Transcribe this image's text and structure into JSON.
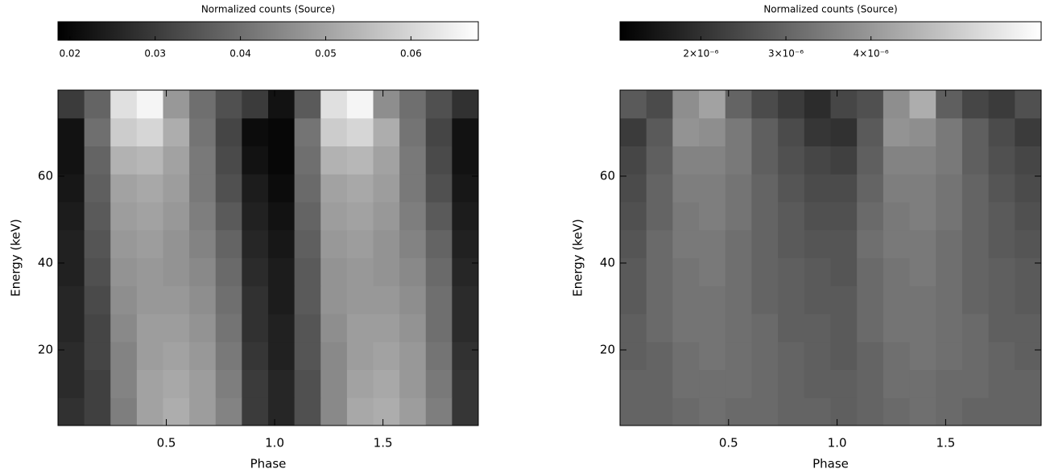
{
  "chart_data": [
    {
      "type": "heatmap",
      "colormap": "gray",
      "colorbar_label": "Normalized counts (Source)",
      "xlabel": "Phase",
      "ylabel": "Energy (keV)",
      "xlim": [
        0,
        1.94
      ],
      "ylim": [
        2.6,
        79.8
      ],
      "zlim": [
        0.0186,
        0.0679
      ],
      "xticks": [
        0.5,
        {
          "value": 1,
          "label": "1.0"
        },
        1.5
      ],
      "yticks": [
        20,
        40,
        60
      ],
      "zticks": [
        0.02,
        0.03,
        0.04,
        0.05,
        0.06
      ],
      "z": [
        [
          0.028,
          0.031,
          0.043,
          0.05,
          0.052,
          0.049,
          0.044,
          0.03,
          0.026,
          0.034,
          0.045,
          0.051,
          0.052,
          0.049,
          0.043,
          0.029
        ],
        [
          0.027,
          0.031,
          0.044,
          0.05,
          0.051,
          0.049,
          0.043,
          0.03,
          0.026,
          0.034,
          0.045,
          0.05,
          0.051,
          0.048,
          0.042,
          0.029
        ],
        [
          0.027,
          0.032,
          0.044,
          0.049,
          0.05,
          0.048,
          0.042,
          0.029,
          0.025,
          0.035,
          0.045,
          0.049,
          0.05,
          0.048,
          0.041,
          0.028
        ],
        [
          0.026,
          0.032,
          0.045,
          0.049,
          0.049,
          0.047,
          0.041,
          0.028,
          0.025,
          0.035,
          0.046,
          0.049,
          0.049,
          0.047,
          0.04,
          0.027
        ],
        [
          0.026,
          0.033,
          0.046,
          0.048,
          0.048,
          0.046,
          0.04,
          0.028,
          0.024,
          0.036,
          0.047,
          0.048,
          0.048,
          0.046,
          0.04,
          0.027
        ],
        [
          0.025,
          0.034,
          0.047,
          0.048,
          0.047,
          0.045,
          0.039,
          0.027,
          0.024,
          0.036,
          0.047,
          0.048,
          0.047,
          0.045,
          0.039,
          0.026
        ],
        [
          0.025,
          0.035,
          0.048,
          0.049,
          0.047,
          0.044,
          0.038,
          0.026,
          0.023,
          0.037,
          0.048,
          0.049,
          0.047,
          0.044,
          0.038,
          0.025
        ],
        [
          0.024,
          0.036,
          0.049,
          0.05,
          0.048,
          0.043,
          0.036,
          0.025,
          0.022,
          0.038,
          0.049,
          0.05,
          0.048,
          0.043,
          0.036,
          0.024
        ],
        [
          0.023,
          0.037,
          0.05,
          0.051,
          0.049,
          0.042,
          0.034,
          0.024,
          0.021,
          0.039,
          0.05,
          0.051,
          0.049,
          0.042,
          0.034,
          0.023
        ],
        [
          0.022,
          0.038,
          0.053,
          0.054,
          0.05,
          0.042,
          0.033,
          0.022,
          0.02,
          0.04,
          0.053,
          0.054,
          0.05,
          0.042,
          0.033,
          0.022
        ],
        [
          0.022,
          0.04,
          0.058,
          0.06,
          0.052,
          0.041,
          0.032,
          0.021,
          0.02,
          0.041,
          0.058,
          0.06,
          0.052,
          0.041,
          0.032,
          0.022
        ],
        [
          0.03,
          0.038,
          0.062,
          0.066,
          0.048,
          0.04,
          0.034,
          0.03,
          0.022,
          0.036,
          0.062,
          0.066,
          0.046,
          0.04,
          0.034,
          0.028
        ]
      ]
    },
    {
      "type": "heatmap",
      "colormap": "gray",
      "colorbar_label": "Normalized counts (Source)",
      "xlabel": "Phase",
      "ylabel": "Energy (keV)",
      "xlim": [
        0,
        1.94
      ],
      "ylim": [
        2.6,
        79.8
      ],
      "zlim": [
        1.05e-06,
        6e-06
      ],
      "xticks": [
        0.5,
        {
          "value": 1,
          "label": "1.0"
        },
        1.5
      ],
      "yticks": [
        20,
        40,
        60
      ],
      "zticks": [
        {
          "value": 2e-06,
          "label": "2×10⁻⁶"
        },
        {
          "value": 3e-06,
          "label": "3×10⁻⁶"
        },
        {
          "value": 4e-06,
          "label": "4×10⁻⁶"
        }
      ],
      "z": [
        [
          3e-06,
          3e-06,
          3.1e-06,
          3.2e-06,
          3.1e-06,
          3.1e-06,
          3e-06,
          3e-06,
          2.9e-06,
          3e-06,
          3.1e-06,
          3.2e-06,
          3.1e-06,
          3e-06,
          3e-06,
          3e-06
        ],
        [
          3e-06,
          3e-06,
          3.2e-06,
          3.2e-06,
          3.2e-06,
          3.1e-06,
          3e-06,
          2.9e-06,
          2.9e-06,
          3e-06,
          3.2e-06,
          3.2e-06,
          3.1e-06,
          3.1e-06,
          3e-06,
          3e-06
        ],
        [
          2.9e-06,
          3e-06,
          3.2e-06,
          3.3e-06,
          3.2e-06,
          3.1e-06,
          3e-06,
          2.9e-06,
          2.8e-06,
          3e-06,
          3.2e-06,
          3.3e-06,
          3.2e-06,
          3.1e-06,
          3e-06,
          2.9e-06
        ],
        [
          2.9e-06,
          3.1e-06,
          3.3e-06,
          3.3e-06,
          3.2e-06,
          3.1e-06,
          2.9e-06,
          2.9e-06,
          2.8e-06,
          3.1e-06,
          3.3e-06,
          3.3e-06,
          3.2e-06,
          3.1e-06,
          2.9e-06,
          2.9e-06
        ],
        [
          2.8e-06,
          3.1e-06,
          3.3e-06,
          3.3e-06,
          3.2e-06,
          3e-06,
          2.9e-06,
          2.8e-06,
          2.8e-06,
          3.1e-06,
          3.3e-06,
          3.3e-06,
          3.2e-06,
          3e-06,
          2.9e-06,
          2.8e-06
        ],
        [
          2.8e-06,
          3.1e-06,
          3.3e-06,
          3.4e-06,
          3.2e-06,
          3e-06,
          2.9e-06,
          2.8e-06,
          2.7e-06,
          3.1e-06,
          3.3e-06,
          3.4e-06,
          3.2e-06,
          3e-06,
          2.9e-06,
          2.8e-06
        ],
        [
          2.7e-06,
          3.1e-06,
          3.4e-06,
          3.4e-06,
          3.2e-06,
          3e-06,
          2.8e-06,
          2.7e-06,
          2.7e-06,
          3.2e-06,
          3.4e-06,
          3.4e-06,
          3.2e-06,
          3e-06,
          2.8e-06,
          2.7e-06
        ],
        [
          2.6e-06,
          3e-06,
          3.4e-06,
          3.5e-06,
          3.3e-06,
          3e-06,
          2.8e-06,
          2.6e-06,
          2.6e-06,
          3.1e-06,
          3.4e-06,
          3.5e-06,
          3.3e-06,
          3e-06,
          2.8e-06,
          2.6e-06
        ],
        [
          2.5e-06,
          3e-06,
          3.5e-06,
          3.5e-06,
          3.3e-06,
          3e-06,
          2.7e-06,
          2.5e-06,
          2.5e-06,
          3e-06,
          3.5e-06,
          3.5e-06,
          3.3e-06,
          3e-06,
          2.7e-06,
          2.5e-06
        ],
        [
          2.4e-06,
          2.9e-06,
          3.6e-06,
          3.6e-06,
          3.4e-06,
          2.9e-06,
          2.6e-06,
          2.4e-06,
          2.3e-06,
          2.9e-06,
          3.6e-06,
          3.6e-06,
          3.4e-06,
          2.9e-06,
          2.6e-06,
          2.4e-06
        ],
        [
          2.2e-06,
          2.8e-06,
          3.9e-06,
          3.8e-06,
          3.4e-06,
          2.9e-06,
          2.5e-06,
          2.1e-06,
          2e-06,
          2.8e-06,
          3.9e-06,
          3.8e-06,
          3.4e-06,
          2.9e-06,
          2.5e-06,
          2.2e-06
        ],
        [
          2.8e-06,
          2.5e-06,
          3.8e-06,
          4.2e-06,
          3e-06,
          2.5e-06,
          2.2e-06,
          1.9e-06,
          2.4e-06,
          2.6e-06,
          3.8e-06,
          4.4e-06,
          2.9e-06,
          2.4e-06,
          2.2e-06,
          2.6e-06
        ]
      ]
    }
  ]
}
